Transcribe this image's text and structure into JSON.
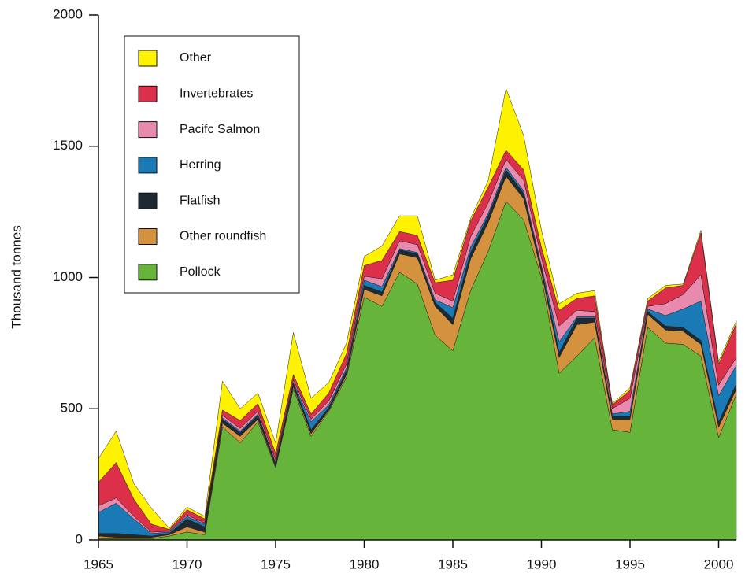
{
  "chart_data": {
    "type": "stacked_area",
    "y_label": "Thousand tonnes",
    "x": [
      1965,
      1966,
      1967,
      1968,
      1969,
      1970,
      1971,
      1972,
      1973,
      1974,
      1975,
      1976,
      1977,
      1978,
      1979,
      1980,
      1981,
      1982,
      1983,
      1984,
      1985,
      1986,
      1987,
      1988,
      1989,
      1990,
      1991,
      1992,
      1993,
      1994,
      1995,
      1996,
      1997,
      1998,
      1999,
      2000,
      2001
    ],
    "xlim": [
      1965,
      2001
    ],
    "xticks": [
      1965,
      1970,
      1975,
      1980,
      1985,
      1990,
      1995,
      2000
    ],
    "ylim": [
      0,
      2000
    ],
    "yticks": [
      0,
      500,
      1000,
      1500,
      2000
    ],
    "legend": "upper left",
    "series": [
      {
        "name": "Pollock",
        "color": "#66b53a",
        "values": [
          5,
          5,
          5,
          5,
          15,
          30,
          20,
          430,
          370,
          450,
          275,
          575,
          395,
          490,
          620,
          925,
          890,
          1020,
          975,
          780,
          720,
          950,
          1100,
          1290,
          1220,
          1000,
          635,
          700,
          770,
          420,
          410,
          810,
          750,
          745,
          700,
          390,
          555
        ]
      },
      {
        "name": "Other roundfish",
        "color": "#d4913e",
        "values": [
          10,
          5,
          5,
          5,
          5,
          20,
          10,
          15,
          25,
          10,
          5,
          10,
          10,
          5,
          10,
          30,
          40,
          70,
          100,
          110,
          100,
          120,
          110,
          95,
          80,
          20,
          60,
          120,
          60,
          40,
          50,
          50,
          50,
          50,
          45,
          40,
          20
        ]
      },
      {
        "name": "Flatfish",
        "color": "#1e2a33",
        "values": [
          10,
          15,
          10,
          5,
          5,
          30,
          20,
          15,
          15,
          15,
          10,
          10,
          15,
          10,
          15,
          15,
          15,
          15,
          15,
          15,
          25,
          25,
          25,
          25,
          20,
          15,
          20,
          25,
          15,
          10,
          10,
          10,
          15,
          15,
          15,
          20,
          20
        ]
      },
      {
        "name": "Herring",
        "color": "#1a7ab5",
        "values": [
          80,
          115,
          60,
          10,
          5,
          10,
          10,
          5,
          5,
          5,
          5,
          5,
          30,
          10,
          10,
          20,
          20,
          5,
          5,
          10,
          40,
          20,
          10,
          10,
          10,
          10,
          40,
          5,
          5,
          10,
          20,
          10,
          40,
          70,
          150,
          100,
          70
        ]
      },
      {
        "name": "Pacifc Salmon",
        "color": "#e88aae",
        "values": [
          25,
          20,
          10,
          5,
          3,
          5,
          5,
          10,
          10,
          10,
          10,
          10,
          10,
          15,
          15,
          15,
          30,
          30,
          30,
          25,
          25,
          40,
          40,
          30,
          40,
          30,
          60,
          25,
          20,
          20,
          50,
          10,
          45,
          55,
          100,
          40,
          30
        ]
      },
      {
        "name": "Invertebrates",
        "color": "#dc2f4a",
        "values": [
          90,
          135,
          65,
          30,
          7,
          20,
          15,
          20,
          30,
          30,
          25,
          20,
          20,
          30,
          40,
          40,
          70,
          35,
          35,
          40,
          80,
          60,
          60,
          35,
          40,
          40,
          60,
          45,
          60,
          15,
          30,
          20,
          60,
          35,
          160,
          80,
          130
        ]
      },
      {
        "name": "Other",
        "color": "#fff200",
        "values": [
          90,
          120,
          60,
          60,
          5,
          10,
          10,
          110,
          45,
          40,
          40,
          160,
          60,
          40,
          40,
          35,
          55,
          60,
          75,
          10,
          20,
          10,
          25,
          235,
          130,
          65,
          25,
          20,
          20,
          5,
          10,
          10,
          10,
          5,
          10,
          10,
          10
        ]
      }
    ]
  }
}
